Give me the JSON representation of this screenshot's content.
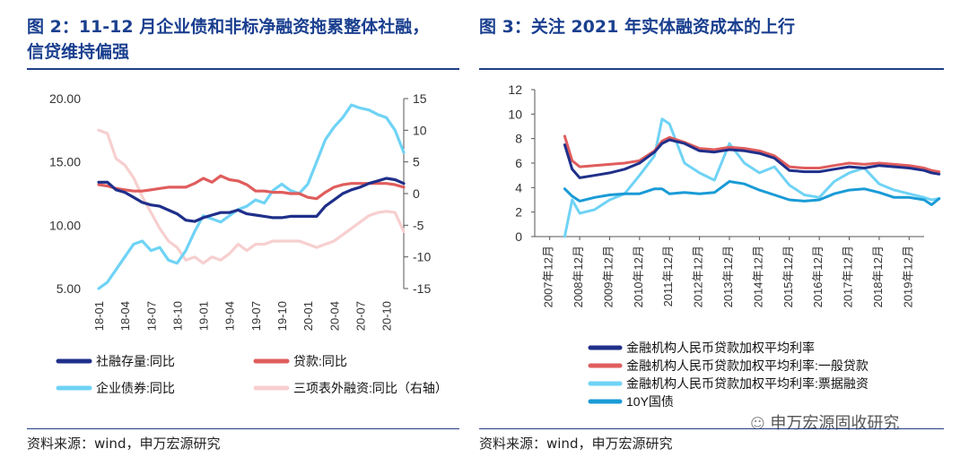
{
  "left": {
    "title_line1": "图 2：11-12 月企业债和非标净融资拖累整体社融，",
    "title_line2": "信贷维持偏强",
    "source": "资料来源：wind，申万宏源研究",
    "chart_data": {
      "type": "line",
      "x": [
        "18-01",
        "18-02",
        "18-03",
        "18-04",
        "18-05",
        "18-06",
        "18-07",
        "18-08",
        "18-09",
        "18-10",
        "18-11",
        "18-12",
        "19-01",
        "19-02",
        "19-03",
        "19-04",
        "19-05",
        "19-06",
        "19-07",
        "19-08",
        "19-09",
        "19-10",
        "19-11",
        "19-12",
        "20-01",
        "20-02",
        "20-03",
        "20-04",
        "20-05",
        "20-06",
        "20-07",
        "20-08",
        "20-09",
        "20-10",
        "20-11",
        "20-12"
      ],
      "xticks": [
        "18-01",
        "18-04",
        "18-07",
        "18-10",
        "19-01",
        "19-04",
        "19-07",
        "19-10",
        "20-01",
        "20-04",
        "20-07",
        "20-10"
      ],
      "left_axis": {
        "min": 5,
        "max": 20,
        "ticks": [
          "5.00",
          "10.00",
          "15.00",
          "20.00"
        ]
      },
      "right_axis": {
        "min": -15,
        "max": 15,
        "ticks": [
          "-15",
          "-10",
          "-5",
          "0",
          "5",
          "10",
          "15"
        ]
      },
      "series": [
        {
          "name": "社融存量:同比",
          "axis": "left",
          "color": "#1f2f8a",
          "values": [
            13.4,
            13.4,
            12.8,
            12.6,
            12.2,
            11.8,
            11.6,
            11.5,
            11.2,
            10.9,
            10.4,
            10.3,
            10.6,
            10.8,
            11.0,
            11.0,
            11.2,
            10.9,
            10.8,
            10.7,
            10.6,
            10.6,
            10.7,
            10.7,
            10.7,
            10.7,
            11.5,
            12.0,
            12.5,
            12.8,
            13.0,
            13.3,
            13.5,
            13.7,
            13.6,
            13.3
          ]
        },
        {
          "name": "贷款:同比",
          "axis": "left",
          "color": "#e05d5d",
          "values": [
            13.2,
            13.1,
            12.9,
            12.8,
            12.7,
            12.7,
            12.8,
            12.9,
            13.0,
            13.0,
            13.0,
            13.3,
            13.7,
            13.4,
            13.9,
            13.6,
            13.5,
            13.2,
            12.7,
            12.7,
            12.6,
            12.6,
            12.5,
            12.5,
            12.2,
            12.1,
            12.6,
            13.0,
            13.2,
            13.3,
            13.3,
            13.3,
            13.3,
            13.3,
            13.2,
            13.0
          ]
        },
        {
          "name": "企业债券:同比",
          "axis": "right",
          "color": "#6fd3f5",
          "values": [
            -15.0,
            -14.0,
            -12.0,
            -10.0,
            -8.0,
            -7.5,
            -9.0,
            -8.5,
            -10.5,
            -11.0,
            -9.0,
            -6.0,
            -3.5,
            -4.0,
            -4.5,
            -3.5,
            -2.5,
            -2.0,
            -1.0,
            -1.5,
            0.5,
            1.5,
            0.5,
            0.0,
            1.5,
            5.0,
            8.5,
            10.5,
            12.0,
            14.0,
            13.5,
            13.2,
            12.5,
            12.0,
            10.0,
            6.5
          ]
        },
        {
          "name": "三项表外融资:同比（右轴）",
          "axis": "right",
          "color": "#f7cfcf",
          "values": [
            10.0,
            9.5,
            5.5,
            4.5,
            2.5,
            -0.5,
            -3.0,
            -5.5,
            -7.5,
            -8.5,
            -10.5,
            -10.0,
            -11.0,
            -10.0,
            -10.5,
            -9.5,
            -8.0,
            -9.0,
            -8.0,
            -8.0,
            -7.5,
            -7.5,
            -7.5,
            -7.5,
            -8.0,
            -8.5,
            -8.0,
            -7.5,
            -6.5,
            -5.5,
            -4.5,
            -3.5,
            -3.0,
            -2.8,
            -3.0,
            -6.0
          ]
        }
      ]
    },
    "legend": [
      {
        "label": "社融存量:同比",
        "color": "#1f2f8a"
      },
      {
        "label": "贷款:同比",
        "color": "#e05d5d"
      },
      {
        "label": "企业债券:同比",
        "color": "#6fd3f5"
      },
      {
        "label": "三项表外融资:同比（右轴）",
        "color": "#f7cfcf"
      }
    ]
  },
  "right": {
    "title": "图 3：关注 2021 年实体融资成本的上行",
    "source": "资料来源：wind，申万宏源研究",
    "watermark": "申万宏源固收研究",
    "chart_data": {
      "type": "line",
      "x_start": 2008.0,
      "x_end": 2020.5,
      "xticks": [
        "2007年12月",
        "2008年12月",
        "2009年12月",
        "2010年12月",
        "2011年12月",
        "2012年12月",
        "2013年12月",
        "2014年12月",
        "2015年12月",
        "2016年12月",
        "2017年12月",
        "2018年12月",
        "2019年12月"
      ],
      "y_axis": {
        "min": 0,
        "max": 12,
        "ticks": [
          "0",
          "2",
          "4",
          "6",
          "8",
          "10",
          "12"
        ]
      },
      "series": [
        {
          "name": "金融机构人民币贷款加权平均利率",
          "color": "#1f2f8a",
          "points": [
            [
              2008.0,
              7.5
            ],
            [
              2008.25,
              5.5
            ],
            [
              2008.5,
              4.8
            ],
            [
              2009.0,
              5.0
            ],
            [
              2009.5,
              5.2
            ],
            [
              2010.0,
              5.5
            ],
            [
              2010.5,
              6.0
            ],
            [
              2011.0,
              6.9
            ],
            [
              2011.25,
              7.6
            ],
            [
              2011.5,
              7.9
            ],
            [
              2012.0,
              7.6
            ],
            [
              2012.5,
              7.0
            ],
            [
              2013.0,
              6.9
            ],
            [
              2013.5,
              7.1
            ],
            [
              2014.0,
              7.0
            ],
            [
              2014.5,
              6.8
            ],
            [
              2015.0,
              6.4
            ],
            [
              2015.5,
              5.4
            ],
            [
              2016.0,
              5.3
            ],
            [
              2016.5,
              5.3
            ],
            [
              2017.0,
              5.5
            ],
            [
              2017.5,
              5.7
            ],
            [
              2018.0,
              5.6
            ],
            [
              2018.5,
              5.8
            ],
            [
              2019.0,
              5.7
            ],
            [
              2019.5,
              5.6
            ],
            [
              2020.0,
              5.4
            ],
            [
              2020.25,
              5.2
            ],
            [
              2020.5,
              5.1
            ]
          ]
        },
        {
          "name": "金融机构人民币贷款加权平均利率:一般贷款",
          "color": "#e05d5d",
          "points": [
            [
              2008.0,
              8.2
            ],
            [
              2008.25,
              6.2
            ],
            [
              2008.5,
              5.7
            ],
            [
              2009.0,
              5.8
            ],
            [
              2009.5,
              5.9
            ],
            [
              2010.0,
              6.0
            ],
            [
              2010.5,
              6.2
            ],
            [
              2011.0,
              7.0
            ],
            [
              2011.25,
              7.8
            ],
            [
              2011.5,
              8.1
            ],
            [
              2012.0,
              7.7
            ],
            [
              2012.5,
              7.2
            ],
            [
              2013.0,
              7.1
            ],
            [
              2013.5,
              7.3
            ],
            [
              2014.0,
              7.2
            ],
            [
              2014.5,
              7.0
            ],
            [
              2015.0,
              6.6
            ],
            [
              2015.5,
              5.7
            ],
            [
              2016.0,
              5.6
            ],
            [
              2016.5,
              5.6
            ],
            [
              2017.0,
              5.8
            ],
            [
              2017.5,
              6.0
            ],
            [
              2018.0,
              5.9
            ],
            [
              2018.5,
              6.0
            ],
            [
              2019.0,
              5.9
            ],
            [
              2019.5,
              5.8
            ],
            [
              2020.0,
              5.6
            ],
            [
              2020.25,
              5.4
            ],
            [
              2020.5,
              5.3
            ]
          ]
        },
        {
          "name": "金融机构人民币贷款加权平均利率:票据融资",
          "color": "#6fd3f5",
          "points": [
            [
              2008.0,
              0.0
            ],
            [
              2008.25,
              3.0
            ],
            [
              2008.5,
              1.9
            ],
            [
              2009.0,
              2.2
            ],
            [
              2009.5,
              3.0
            ],
            [
              2010.0,
              3.5
            ],
            [
              2010.5,
              5.0
            ],
            [
              2011.0,
              6.6
            ],
            [
              2011.25,
              9.6
            ],
            [
              2011.5,
              9.2
            ],
            [
              2012.0,
              6.0
            ],
            [
              2012.5,
              5.2
            ],
            [
              2013.0,
              4.6
            ],
            [
              2013.5,
              7.6
            ],
            [
              2014.0,
              6.0
            ],
            [
              2014.5,
              5.2
            ],
            [
              2015.0,
              5.7
            ],
            [
              2015.5,
              4.2
            ],
            [
              2016.0,
              3.4
            ],
            [
              2016.5,
              3.2
            ],
            [
              2017.0,
              4.5
            ],
            [
              2017.5,
              5.2
            ],
            [
              2018.0,
              5.6
            ],
            [
              2018.5,
              4.3
            ],
            [
              2019.0,
              3.8
            ],
            [
              2019.5,
              3.5
            ],
            [
              2020.0,
              3.2
            ],
            [
              2020.25,
              3.0
            ],
            [
              2020.5,
              3.1
            ]
          ]
        },
        {
          "name": "10Y国债",
          "color": "#1a9bd6",
          "points": [
            [
              2008.0,
              3.9
            ],
            [
              2008.25,
              3.3
            ],
            [
              2008.5,
              2.9
            ],
            [
              2009.0,
              3.2
            ],
            [
              2009.5,
              3.4
            ],
            [
              2010.0,
              3.5
            ],
            [
              2010.5,
              3.5
            ],
            [
              2011.0,
              3.9
            ],
            [
              2011.25,
              3.9
            ],
            [
              2011.5,
              3.5
            ],
            [
              2012.0,
              3.6
            ],
            [
              2012.5,
              3.5
            ],
            [
              2013.0,
              3.6
            ],
            [
              2013.5,
              4.5
            ],
            [
              2014.0,
              4.3
            ],
            [
              2014.5,
              3.8
            ],
            [
              2015.0,
              3.4
            ],
            [
              2015.5,
              3.0
            ],
            [
              2016.0,
              2.9
            ],
            [
              2016.5,
              3.0
            ],
            [
              2017.0,
              3.5
            ],
            [
              2017.5,
              3.8
            ],
            [
              2018.0,
              3.9
            ],
            [
              2018.5,
              3.6
            ],
            [
              2019.0,
              3.2
            ],
            [
              2019.5,
              3.2
            ],
            [
              2020.0,
              3.0
            ],
            [
              2020.25,
              2.6
            ],
            [
              2020.5,
              3.1
            ]
          ]
        }
      ]
    },
    "legend": [
      {
        "label": "金融机构人民币贷款加权平均利率",
        "color": "#1f2f8a"
      },
      {
        "label": "金融机构人民币贷款加权平均利率:一般贷款",
        "color": "#e05d5d"
      },
      {
        "label": "金融机构人民币贷款加权平均利率:票据融资",
        "color": "#6fd3f5"
      },
      {
        "label": "10Y国债",
        "color": "#1a9bd6"
      }
    ]
  }
}
